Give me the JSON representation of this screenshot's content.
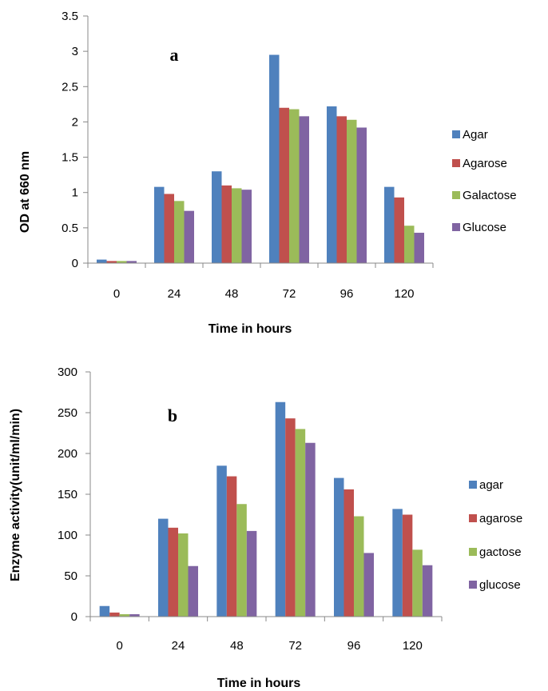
{
  "colors": {
    "s1": "#4F81BD",
    "s2": "#C0504D",
    "s3": "#9BBB59",
    "s4": "#8064A2"
  },
  "chart_data": [
    {
      "type": "bar",
      "panel_label": "a",
      "xlabel": "Time in hours",
      "ylabel": "OD at 660 nm",
      "categories": [
        "0",
        "24",
        "48",
        "72",
        "96",
        "120"
      ],
      "ylim": [
        0,
        3.5
      ],
      "yticks": [
        "0",
        "0.5",
        "1",
        "1.5",
        "2",
        "2.5",
        "3",
        "3.5"
      ],
      "grid": false,
      "legend_position": "right",
      "series": [
        {
          "name": "Agar",
          "color": "#4F81BD",
          "values": [
            0.05,
            1.08,
            1.3,
            2.95,
            2.22,
            1.08
          ]
        },
        {
          "name": "Agarose",
          "color": "#C0504D",
          "values": [
            0.03,
            0.98,
            1.1,
            2.2,
            2.08,
            0.93
          ]
        },
        {
          "name": "Galactose",
          "color": "#9BBB59",
          "values": [
            0.03,
            0.88,
            1.06,
            2.18,
            2.03,
            0.53
          ]
        },
        {
          "name": "Glucose",
          "color": "#8064A2",
          "values": [
            0.03,
            0.74,
            1.04,
            2.08,
            1.92,
            0.43
          ]
        }
      ]
    },
    {
      "type": "bar",
      "panel_label": "b",
      "xlabel": "Time in hours",
      "ylabel": "Enzyme activity(unit/ml/min)",
      "categories": [
        "0",
        "24",
        "48",
        "72",
        "96",
        "120"
      ],
      "ylim": [
        0,
        300
      ],
      "yticks": [
        "0",
        "50",
        "100",
        "150",
        "200",
        "250",
        "300"
      ],
      "grid": false,
      "legend_position": "right",
      "series": [
        {
          "name": "agar",
          "color": "#4F81BD",
          "values": [
            13,
            120,
            185,
            263,
            170,
            132
          ]
        },
        {
          "name": "agarose",
          "color": "#C0504D",
          "values": [
            5,
            109,
            172,
            243,
            156,
            125
          ]
        },
        {
          "name": "gactose",
          "color": "#9BBB59",
          "values": [
            3,
            102,
            138,
            230,
            123,
            82
          ]
        },
        {
          "name": "glucose",
          "color": "#8064A2",
          "values": [
            3,
            62,
            105,
            213,
            78,
            63
          ]
        }
      ]
    }
  ]
}
